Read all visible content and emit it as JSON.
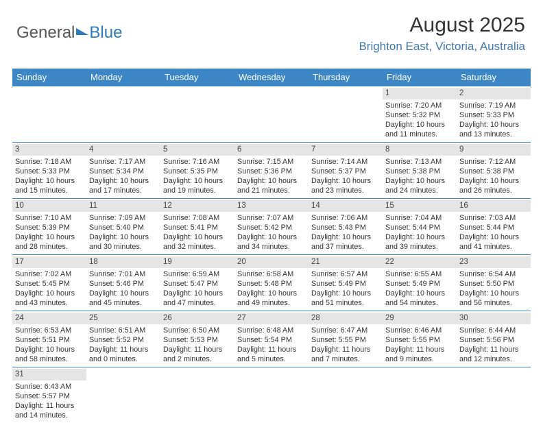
{
  "logo": {
    "part1": "General",
    "part2": "Blue"
  },
  "title": "August 2025",
  "location": "Brighton East, Victoria, Australia",
  "colors": {
    "header_bg": "#3d86c6",
    "header_text": "#ffffff",
    "daynum_bg": "#e5e5e5",
    "location_color": "#4378ad",
    "border": "#3d86c6",
    "body_text": "#333333"
  },
  "day_headers": [
    "Sunday",
    "Monday",
    "Tuesday",
    "Wednesday",
    "Thursday",
    "Friday",
    "Saturday"
  ],
  "weeks": [
    [
      {
        "n": "",
        "empty": true
      },
      {
        "n": "",
        "empty": true
      },
      {
        "n": "",
        "empty": true
      },
      {
        "n": "",
        "empty": true
      },
      {
        "n": "",
        "empty": true
      },
      {
        "n": "1",
        "sr": "Sunrise: 7:20 AM",
        "ss": "Sunset: 5:32 PM",
        "d1": "Daylight: 10 hours",
        "d2": "and 11 minutes."
      },
      {
        "n": "2",
        "sr": "Sunrise: 7:19 AM",
        "ss": "Sunset: 5:33 PM",
        "d1": "Daylight: 10 hours",
        "d2": "and 13 minutes."
      }
    ],
    [
      {
        "n": "3",
        "sr": "Sunrise: 7:18 AM",
        "ss": "Sunset: 5:33 PM",
        "d1": "Daylight: 10 hours",
        "d2": "and 15 minutes."
      },
      {
        "n": "4",
        "sr": "Sunrise: 7:17 AM",
        "ss": "Sunset: 5:34 PM",
        "d1": "Daylight: 10 hours",
        "d2": "and 17 minutes."
      },
      {
        "n": "5",
        "sr": "Sunrise: 7:16 AM",
        "ss": "Sunset: 5:35 PM",
        "d1": "Daylight: 10 hours",
        "d2": "and 19 minutes."
      },
      {
        "n": "6",
        "sr": "Sunrise: 7:15 AM",
        "ss": "Sunset: 5:36 PM",
        "d1": "Daylight: 10 hours",
        "d2": "and 21 minutes."
      },
      {
        "n": "7",
        "sr": "Sunrise: 7:14 AM",
        "ss": "Sunset: 5:37 PM",
        "d1": "Daylight: 10 hours",
        "d2": "and 23 minutes."
      },
      {
        "n": "8",
        "sr": "Sunrise: 7:13 AM",
        "ss": "Sunset: 5:38 PM",
        "d1": "Daylight: 10 hours",
        "d2": "and 24 minutes."
      },
      {
        "n": "9",
        "sr": "Sunrise: 7:12 AM",
        "ss": "Sunset: 5:38 PM",
        "d1": "Daylight: 10 hours",
        "d2": "and 26 minutes."
      }
    ],
    [
      {
        "n": "10",
        "sr": "Sunrise: 7:10 AM",
        "ss": "Sunset: 5:39 PM",
        "d1": "Daylight: 10 hours",
        "d2": "and 28 minutes."
      },
      {
        "n": "11",
        "sr": "Sunrise: 7:09 AM",
        "ss": "Sunset: 5:40 PM",
        "d1": "Daylight: 10 hours",
        "d2": "and 30 minutes."
      },
      {
        "n": "12",
        "sr": "Sunrise: 7:08 AM",
        "ss": "Sunset: 5:41 PM",
        "d1": "Daylight: 10 hours",
        "d2": "and 32 minutes."
      },
      {
        "n": "13",
        "sr": "Sunrise: 7:07 AM",
        "ss": "Sunset: 5:42 PM",
        "d1": "Daylight: 10 hours",
        "d2": "and 34 minutes."
      },
      {
        "n": "14",
        "sr": "Sunrise: 7:06 AM",
        "ss": "Sunset: 5:43 PM",
        "d1": "Daylight: 10 hours",
        "d2": "and 37 minutes."
      },
      {
        "n": "15",
        "sr": "Sunrise: 7:04 AM",
        "ss": "Sunset: 5:44 PM",
        "d1": "Daylight: 10 hours",
        "d2": "and 39 minutes."
      },
      {
        "n": "16",
        "sr": "Sunrise: 7:03 AM",
        "ss": "Sunset: 5:44 PM",
        "d1": "Daylight: 10 hours",
        "d2": "and 41 minutes."
      }
    ],
    [
      {
        "n": "17",
        "sr": "Sunrise: 7:02 AM",
        "ss": "Sunset: 5:45 PM",
        "d1": "Daylight: 10 hours",
        "d2": "and 43 minutes."
      },
      {
        "n": "18",
        "sr": "Sunrise: 7:01 AM",
        "ss": "Sunset: 5:46 PM",
        "d1": "Daylight: 10 hours",
        "d2": "and 45 minutes."
      },
      {
        "n": "19",
        "sr": "Sunrise: 6:59 AM",
        "ss": "Sunset: 5:47 PM",
        "d1": "Daylight: 10 hours",
        "d2": "and 47 minutes."
      },
      {
        "n": "20",
        "sr": "Sunrise: 6:58 AM",
        "ss": "Sunset: 5:48 PM",
        "d1": "Daylight: 10 hours",
        "d2": "and 49 minutes."
      },
      {
        "n": "21",
        "sr": "Sunrise: 6:57 AM",
        "ss": "Sunset: 5:49 PM",
        "d1": "Daylight: 10 hours",
        "d2": "and 51 minutes."
      },
      {
        "n": "22",
        "sr": "Sunrise: 6:55 AM",
        "ss": "Sunset: 5:49 PM",
        "d1": "Daylight: 10 hours",
        "d2": "and 54 minutes."
      },
      {
        "n": "23",
        "sr": "Sunrise: 6:54 AM",
        "ss": "Sunset: 5:50 PM",
        "d1": "Daylight: 10 hours",
        "d2": "and 56 minutes."
      }
    ],
    [
      {
        "n": "24",
        "sr": "Sunrise: 6:53 AM",
        "ss": "Sunset: 5:51 PM",
        "d1": "Daylight: 10 hours",
        "d2": "and 58 minutes."
      },
      {
        "n": "25",
        "sr": "Sunrise: 6:51 AM",
        "ss": "Sunset: 5:52 PM",
        "d1": "Daylight: 11 hours",
        "d2": "and 0 minutes."
      },
      {
        "n": "26",
        "sr": "Sunrise: 6:50 AM",
        "ss": "Sunset: 5:53 PM",
        "d1": "Daylight: 11 hours",
        "d2": "and 2 minutes."
      },
      {
        "n": "27",
        "sr": "Sunrise: 6:48 AM",
        "ss": "Sunset: 5:54 PM",
        "d1": "Daylight: 11 hours",
        "d2": "and 5 minutes."
      },
      {
        "n": "28",
        "sr": "Sunrise: 6:47 AM",
        "ss": "Sunset: 5:55 PM",
        "d1": "Daylight: 11 hours",
        "d2": "and 7 minutes."
      },
      {
        "n": "29",
        "sr": "Sunrise: 6:46 AM",
        "ss": "Sunset: 5:55 PM",
        "d1": "Daylight: 11 hours",
        "d2": "and 9 minutes."
      },
      {
        "n": "30",
        "sr": "Sunrise: 6:44 AM",
        "ss": "Sunset: 5:56 PM",
        "d1": "Daylight: 11 hours",
        "d2": "and 12 minutes."
      }
    ],
    [
      {
        "n": "31",
        "sr": "Sunrise: 6:43 AM",
        "ss": "Sunset: 5:57 PM",
        "d1": "Daylight: 11 hours",
        "d2": "and 14 minutes."
      },
      {
        "n": "",
        "empty": true
      },
      {
        "n": "",
        "empty": true
      },
      {
        "n": "",
        "empty": true
      },
      {
        "n": "",
        "empty": true
      },
      {
        "n": "",
        "empty": true
      },
      {
        "n": "",
        "empty": true
      }
    ]
  ]
}
